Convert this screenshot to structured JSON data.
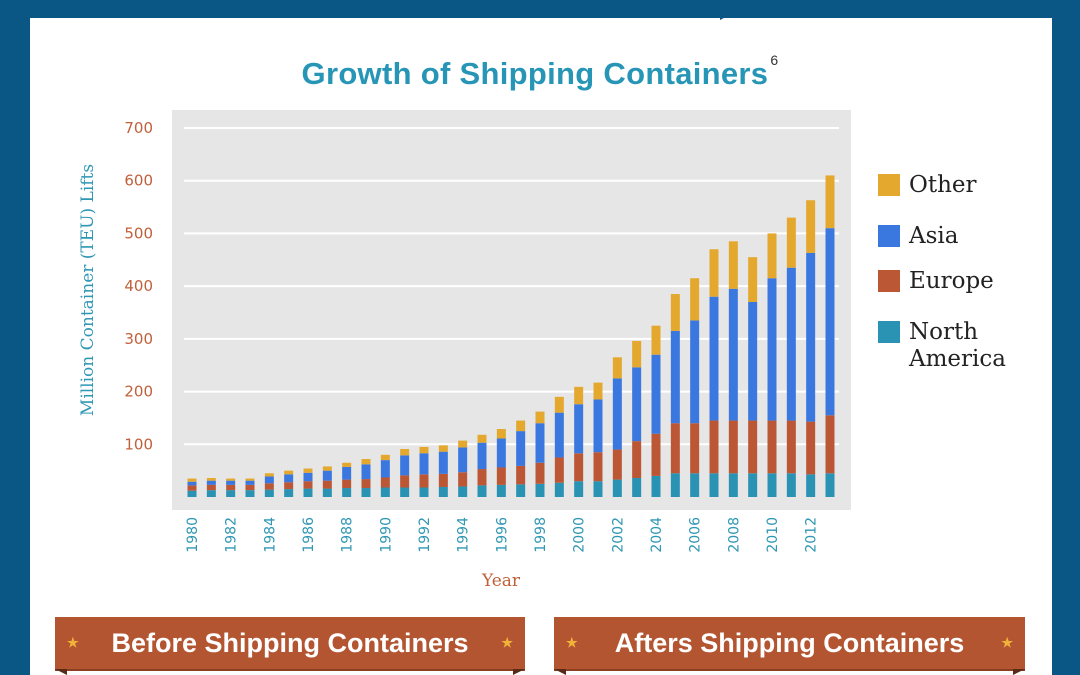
{
  "title": "Growth of Shipping Containers",
  "title_footnote": "6",
  "banners": {
    "left": "Before Shipping Containers",
    "right": "Afters Shipping Containers",
    "star": "★"
  },
  "colors": {
    "title": "#2795b6",
    "north_america": "#2a92b3",
    "europe": "#bc5736",
    "asia": "#3a78e0",
    "other": "#e3a82d",
    "plot_bg": "#e6e6e6",
    "frame": "#0a5684",
    "banner": "#b45532"
  },
  "legend": [
    {
      "label": "Other",
      "color_key": "other"
    },
    {
      "label": "Asia",
      "color_key": "asia"
    },
    {
      "label": "Europe",
      "color_key": "europe"
    },
    {
      "label": "North America",
      "color_key": "north_america"
    }
  ],
  "chart_data": {
    "type": "bar",
    "stacked": true,
    "title": "Growth of Shipping Containers",
    "xlabel": "Year",
    "ylabel": "Million Container (TEU) Lifts",
    "ylim": [
      0,
      700
    ],
    "yticks": [
      100,
      200,
      300,
      400,
      500,
      600,
      700
    ],
    "xtick_labels": [
      "1980",
      "1982",
      "1984",
      "1986",
      "1988",
      "1990",
      "1992",
      "1994",
      "1996",
      "1998",
      "2000",
      "2002",
      "2004",
      "2006",
      "2008",
      "2010",
      "2012"
    ],
    "categories": [
      "1980",
      "1981",
      "1982",
      "1983",
      "1984",
      "1985",
      "1986",
      "1987",
      "1988",
      "1989",
      "1990",
      "1991",
      "1992",
      "1993",
      "1994",
      "1995",
      "1996",
      "1997",
      "1998",
      "1999",
      "2000",
      "2001",
      "2002",
      "2003",
      "2004",
      "2005",
      "2006",
      "2007",
      "2008",
      "2009",
      "2010",
      "2011",
      "2012",
      "2013"
    ],
    "grid": true,
    "legend_position": "right",
    "series": [
      {
        "name": "North America",
        "color_key": "north_america",
        "values": [
          12,
          13,
          13,
          13,
          14,
          15,
          16,
          16,
          17,
          17,
          18,
          18,
          18,
          19,
          20,
          22,
          23,
          24,
          25,
          27,
          30,
          30,
          33,
          36,
          40,
          45,
          45,
          45,
          45,
          45,
          45,
          45,
          43,
          45
        ]
      },
      {
        "name": "Europe",
        "color_key": "europe",
        "values": [
          10,
          10,
          10,
          10,
          12,
          13,
          14,
          15,
          16,
          17,
          19,
          23,
          25,
          25,
          27,
          31,
          33,
          35,
          40,
          48,
          53,
          55,
          57,
          70,
          80,
          95,
          95,
          100,
          100,
          100,
          100,
          100,
          100,
          110
        ]
      },
      {
        "name": "Asia",
        "color_key": "asia",
        "values": [
          7,
          8,
          8,
          8,
          13,
          15,
          16,
          19,
          24,
          28,
          33,
          38,
          40,
          42,
          47,
          50,
          55,
          66,
          75,
          85,
          93,
          100,
          135,
          140,
          150,
          175,
          195,
          235,
          250,
          225,
          270,
          290,
          320,
          355
        ]
      },
      {
        "name": "Other",
        "color_key": "other",
        "values": [
          6,
          5,
          4,
          4,
          6,
          7,
          8,
          8,
          8,
          10,
          10,
          12,
          12,
          12,
          13,
          15,
          18,
          20,
          22,
          30,
          33,
          32,
          40,
          50,
          55,
          70,
          80,
          90,
          90,
          85,
          85,
          95,
          100,
          100
        ]
      }
    ]
  }
}
